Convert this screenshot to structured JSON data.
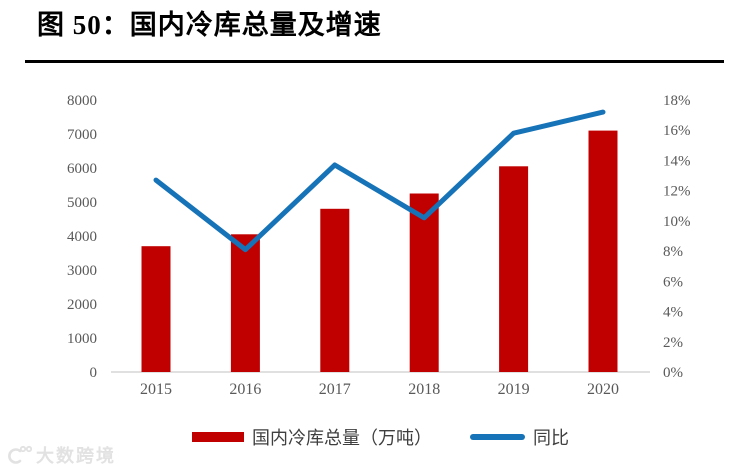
{
  "title": "图 50：国内冷库总量及增速",
  "watermark": {
    "text": "大数跨境"
  },
  "colors": {
    "bar": "#c00000",
    "line": "#1673b8",
    "axis_text": "#595959",
    "baseline": "#d6d6d6",
    "legend_text": "#3f3f3f",
    "title_text": "#000000",
    "watermark_text": "#e2e2e2"
  },
  "chart_data": {
    "type": "combo",
    "categories": [
      "2015",
      "2016",
      "2017",
      "2018",
      "2019",
      "2020"
    ],
    "series": [
      {
        "name": "国内冷库总量（万吨）",
        "type": "bar",
        "axis": "left",
        "values": [
          3700,
          4050,
          4800,
          5250,
          6050,
          7100
        ],
        "color": "#c00000"
      },
      {
        "name": "同比",
        "type": "line",
        "axis": "right",
        "values": [
          12.7,
          8.1,
          13.7,
          10.2,
          15.8,
          17.2
        ],
        "color": "#1673b8"
      }
    ],
    "left_axis": {
      "min": 0,
      "max": 8000,
      "step": 1000,
      "tick_labels": [
        "0",
        "1000",
        "2000",
        "3000",
        "4000",
        "5000",
        "6000",
        "7000",
        "8000"
      ]
    },
    "right_axis": {
      "min": 0,
      "max": 18,
      "step": 2,
      "tick_labels": [
        "0%",
        "2%",
        "4%",
        "6%",
        "8%",
        "10%",
        "12%",
        "14%",
        "16%",
        "18%"
      ]
    },
    "grid": false,
    "legend_position": "bottom"
  },
  "legend": {
    "items": [
      {
        "label": "国内冷库总量（万吨）",
        "swatch": "bar"
      },
      {
        "label": "同比",
        "swatch": "line"
      }
    ]
  }
}
